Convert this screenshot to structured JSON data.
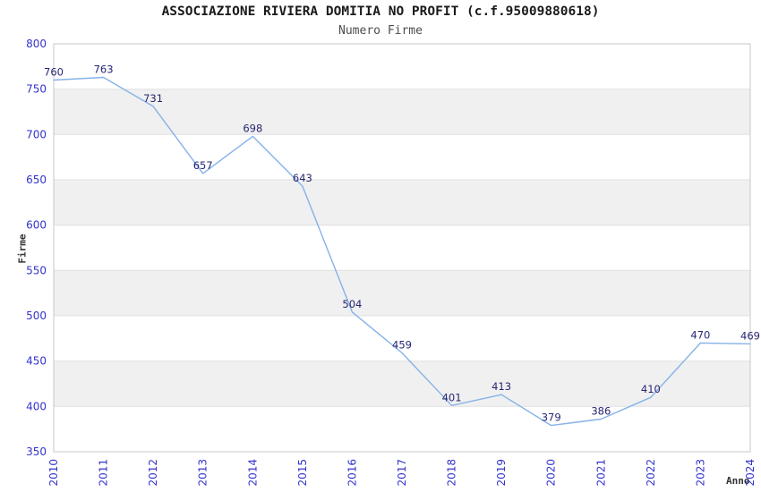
{
  "chart_data": {
    "type": "line",
    "title": "ASSOCIAZIONE RIVIERA DOMITIA NO PROFIT (c.f.95009880618)",
    "subtitle": "Numero Firme",
    "xlabel": "Anno",
    "ylabel": "Firme",
    "series_name": "Numero Firme",
    "categories": [
      "2010",
      "2011",
      "2012",
      "2013",
      "2014",
      "2015",
      "2016",
      "2017",
      "2018",
      "2019",
      "2020",
      "2021",
      "2022",
      "2023",
      "2024"
    ],
    "values": [
      760,
      763,
      731,
      657,
      698,
      643,
      504,
      459,
      401,
      413,
      379,
      386,
      410,
      470,
      469
    ],
    "ylim": [
      350,
      800
    ],
    "ytick_step": 50,
    "yticks": [
      350,
      400,
      450,
      500,
      550,
      600,
      650,
      700,
      750,
      800
    ],
    "grid": "horizontal gridlines with alternating shaded bands",
    "legend": "none",
    "x_tick_rotation_deg": 90,
    "data_labels_shown": true,
    "colors": {
      "line": "#85b2e8",
      "band": "#f0f0f0",
      "grid_line": "#e0e0e0",
      "border": "#c9c9c9",
      "tick_label": "#3333cc",
      "data_label": "#262672",
      "title": "#1a1a1a",
      "subtitle": "#4d4d4d",
      "axis_title": "#333333",
      "background": "#ffffff"
    }
  }
}
